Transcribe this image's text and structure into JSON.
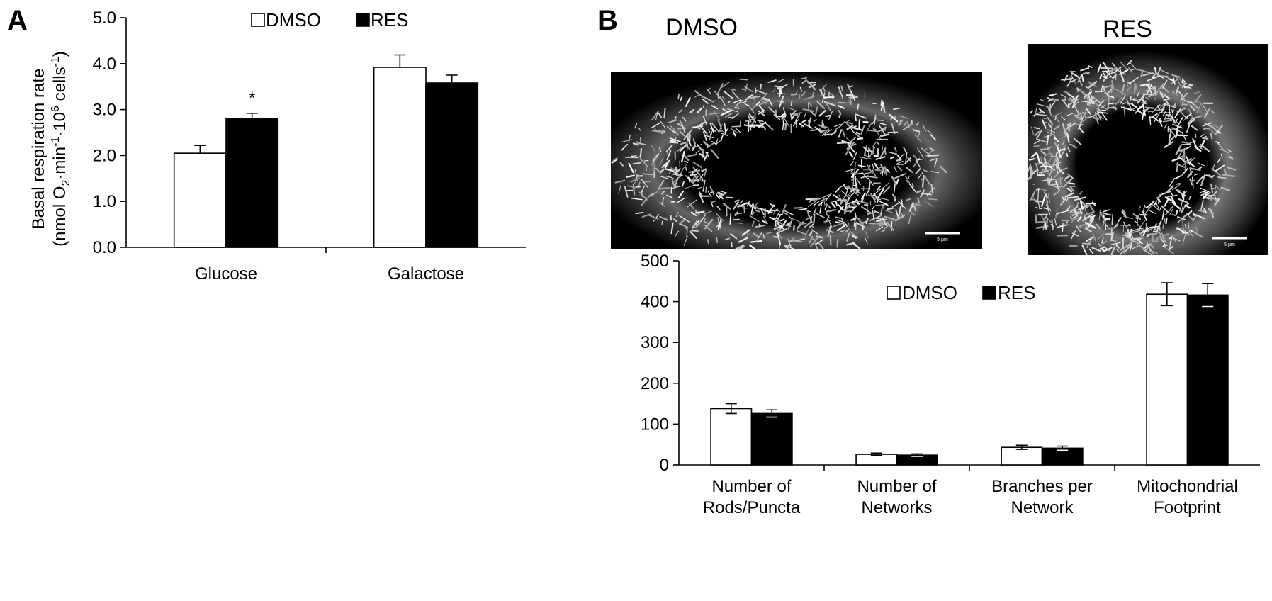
{
  "colors": {
    "dmso": "#ffffff",
    "res": "#000000",
    "stroke": "#000000"
  },
  "panels": {
    "a": {
      "letter": "A"
    },
    "b": {
      "letter": "B"
    }
  },
  "micrographs": {
    "dmso": {
      "title": "DMSO",
      "scale_label": "5 μm"
    },
    "res": {
      "title": "RES",
      "scale_label": "5 μm"
    }
  },
  "chart_data": [
    {
      "type": "bar",
      "panel": "A",
      "categories": [
        "Glucose",
        "Galactose"
      ],
      "series": [
        {
          "name": "DMSO",
          "values": [
            2.05,
            3.92
          ],
          "errors": [
            0.17,
            0.27
          ],
          "color": "#ffffff"
        },
        {
          "name": "RES",
          "values": [
            2.8,
            3.58
          ],
          "errors": [
            0.12,
            0.17
          ],
          "color": "#000000"
        }
      ],
      "annotations": [
        {
          "category": "Glucose",
          "series": "RES",
          "text": "*"
        }
      ],
      "ylabel": "Basal respiration rate",
      "ylabel_line2": {
        "pre": "(nmol O",
        "sub": "2",
        "mid1": "·min",
        "sup1": "-1",
        "mid2": "·10",
        "sup2": "6",
        "mid3": " cells",
        "sup3": "-1",
        "post": ")"
      },
      "ylim": [
        0,
        5
      ],
      "yticks": [
        "0.0",
        "1.0",
        "2.0",
        "3.0",
        "4.0",
        "5.0"
      ],
      "legend_placement": "top",
      "grid": false
    },
    {
      "type": "bar",
      "panel": "B",
      "categories": [
        [
          "Number of",
          "Rods/Puncta"
        ],
        [
          "Number of",
          "Networks"
        ],
        [
          "Branches per",
          "Network"
        ],
        [
          "Mitochondrial",
          "Footprint"
        ]
      ],
      "series": [
        {
          "name": "DMSO",
          "values": [
            138,
            26,
            43,
            418
          ],
          "errors": [
            12,
            3,
            5,
            28
          ],
          "color": "#ffffff"
        },
        {
          "name": "RES",
          "values": [
            126,
            24,
            41,
            416
          ],
          "errors": [
            9,
            3,
            5,
            28
          ],
          "color": "#000000"
        }
      ],
      "ylim": [
        0,
        500
      ],
      "yticks": [
        "0",
        "100",
        "200",
        "300",
        "400",
        "500"
      ],
      "legend_placement": "top",
      "grid": false
    }
  ]
}
